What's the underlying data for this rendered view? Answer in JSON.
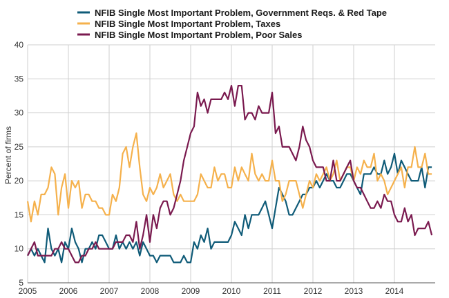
{
  "chart_data": {
    "type": "line",
    "title": "",
    "xlabel": "",
    "ylabel": "Percent of firms",
    "xlim": [
      2005,
      2015
    ],
    "ylim": [
      5,
      40
    ],
    "grid": true,
    "legend_position": "top",
    "x_ticks": [
      "2005",
      "2006",
      "2007",
      "2008",
      "2009",
      "2010",
      "2011",
      "2012",
      "2013",
      "2014"
    ],
    "y_ticks": [
      "5",
      "10",
      "15",
      "20",
      "25",
      "30",
      "35",
      "40"
    ],
    "x": [
      2005.0,
      2005.083,
      2005.167,
      2005.25,
      2005.333,
      2005.417,
      2005.5,
      2005.583,
      2005.667,
      2005.75,
      2005.833,
      2005.917,
      2006.0,
      2006.083,
      2006.167,
      2006.25,
      2006.333,
      2006.417,
      2006.5,
      2006.583,
      2006.667,
      2006.75,
      2006.833,
      2006.917,
      2007.0,
      2007.083,
      2007.167,
      2007.25,
      2007.333,
      2007.417,
      2007.5,
      2007.583,
      2007.667,
      2007.75,
      2007.833,
      2007.917,
      2008.0,
      2008.083,
      2008.167,
      2008.25,
      2008.333,
      2008.417,
      2008.5,
      2008.583,
      2008.667,
      2008.75,
      2008.833,
      2008.917,
      2009.0,
      2009.083,
      2009.167,
      2009.25,
      2009.333,
      2009.417,
      2009.5,
      2009.583,
      2009.667,
      2009.75,
      2009.833,
      2009.917,
      2010.0,
      2010.083,
      2010.167,
      2010.25,
      2010.333,
      2010.417,
      2010.5,
      2010.583,
      2010.667,
      2010.75,
      2010.833,
      2010.917,
      2011.0,
      2011.083,
      2011.167,
      2011.25,
      2011.333,
      2011.417,
      2011.5,
      2011.583,
      2011.667,
      2011.75,
      2011.833,
      2011.917,
      2012.0,
      2012.083,
      2012.167,
      2012.25,
      2012.333,
      2012.417,
      2012.5,
      2012.583,
      2012.667,
      2012.75,
      2012.833,
      2012.917,
      2013.0,
      2013.083,
      2013.167,
      2013.25,
      2013.333,
      2013.417,
      2013.5,
      2013.583,
      2013.667,
      2013.75,
      2013.833,
      2013.917,
      2014.0,
      2014.083,
      2014.167,
      2014.25,
      2014.333,
      2014.417,
      2014.5,
      2014.583,
      2014.667,
      2014.75,
      2014.833,
      2014.917
    ],
    "series": [
      {
        "name": "NFIB Single Most Important Problem, Government Reqs. & Red Tape",
        "color": "#0f5b78",
        "values": [
          9,
          10,
          9,
          10,
          9,
          8,
          13,
          10,
          9,
          10,
          8,
          11,
          10,
          13,
          11,
          10,
          8,
          10,
          10,
          11,
          10,
          12,
          12,
          11,
          10,
          10,
          12,
          10,
          11,
          10,
          11,
          10,
          11,
          9,
          11,
          10,
          9,
          9,
          8,
          9,
          9,
          9,
          9,
          8,
          8,
          8,
          9,
          8,
          8,
          11,
          10,
          12,
          11,
          13,
          10,
          11,
          11,
          11,
          11,
          11,
          12,
          14,
          13,
          12,
          15,
          13,
          15,
          15,
          15,
          16,
          17,
          15,
          13,
          16,
          19,
          18,
          17,
          15,
          15,
          16,
          17,
          18,
          18,
          19,
          19,
          20,
          19,
          20,
          21,
          20,
          20,
          19,
          19,
          20,
          21,
          21,
          20,
          19,
          18,
          21,
          21,
          21,
          22,
          21,
          21,
          23,
          21,
          22,
          24,
          21,
          23,
          22,
          21,
          20,
          20,
          20,
          22,
          19,
          22,
          22
        ]
      },
      {
        "name": "NFIB Single Most Important Problem, Taxes",
        "color": "#f5b14c",
        "values": [
          17,
          14,
          17,
          15,
          18,
          18,
          19,
          22,
          21,
          15,
          19,
          21,
          16,
          20,
          19,
          20,
          16,
          18,
          18,
          17,
          17,
          16,
          16,
          15,
          15,
          18,
          17,
          19,
          24,
          25,
          22,
          25,
          27,
          22,
          18,
          17,
          19,
          18,
          19,
          21,
          19,
          20,
          21,
          18,
          17,
          18,
          17,
          17,
          17,
          17,
          18,
          21,
          20,
          19,
          19,
          22,
          20,
          21,
          21,
          19,
          19,
          22,
          20,
          22,
          21,
          20,
          24,
          21,
          20,
          21,
          20,
          20,
          23,
          20,
          20,
          17,
          18,
          20,
          20,
          20,
          18,
          16,
          18,
          20,
          19,
          21,
          20,
          21,
          22,
          20,
          21,
          23,
          20,
          21,
          22,
          22,
          20,
          22,
          21,
          23,
          22,
          22,
          24,
          20,
          21,
          20,
          18,
          19,
          20,
          21,
          22,
          19,
          22,
          22,
          25,
          22,
          22,
          24,
          21,
          21
        ]
      },
      {
        "name": "NFIB Single Most Important Problem, Poor Sales",
        "color": "#7a1a4f",
        "values": [
          9,
          10,
          11,
          9,
          9,
          9,
          9,
          9,
          10,
          10,
          11,
          10,
          10,
          9,
          8,
          8,
          9,
          9,
          10,
          10,
          11,
          10,
          10,
          10,
          10,
          10,
          11,
          11,
          11,
          12,
          12,
          11,
          14,
          10,
          12,
          15,
          11,
          15,
          13,
          16,
          17,
          17,
          15,
          16,
          18,
          20,
          23,
          25,
          27,
          28,
          33,
          31,
          32,
          30,
          32,
          32,
          32,
          32,
          33,
          32,
          34,
          31,
          34,
          34,
          29,
          30,
          30,
          29,
          31,
          30,
          30,
          30,
          33,
          27,
          28,
          25,
          25,
          25,
          24,
          23,
          25,
          28,
          26,
          25,
          23,
          22,
          22,
          22,
          20,
          20,
          23,
          20,
          20,
          21,
          22,
          23,
          20,
          19,
          19,
          18,
          17,
          16,
          16,
          17,
          16,
          18,
          17,
          17,
          15,
          14,
          14,
          16,
          14,
          15,
          12,
          13,
          13,
          13,
          14,
          12
        ]
      }
    ]
  }
}
